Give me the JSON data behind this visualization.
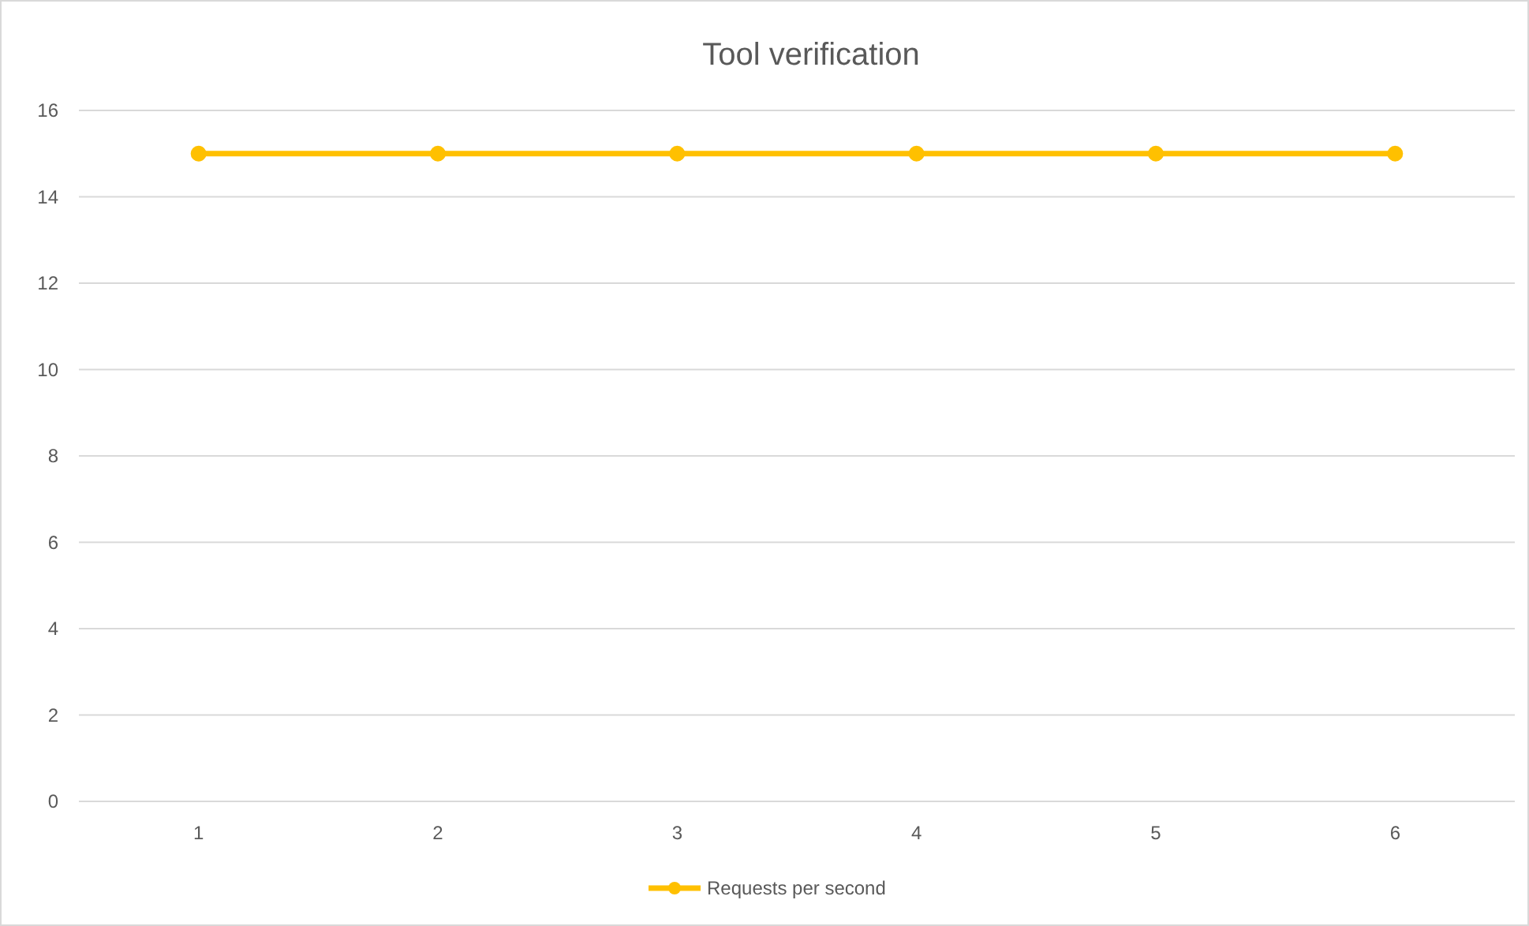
{
  "chart_data": {
    "type": "line",
    "title": "Tool verification",
    "categories": [
      "1",
      "2",
      "3",
      "4",
      "5",
      "6"
    ],
    "series": [
      {
        "name": "Requests per second",
        "color": "#ffc000",
        "values": [
          15,
          15,
          15,
          15,
          15,
          15
        ]
      }
    ],
    "ylim": [
      0,
      16
    ],
    "yticks": [
      0,
      2,
      4,
      6,
      8,
      10,
      12,
      14,
      16
    ],
    "grid": "y",
    "legend": "bottom",
    "marker": "circle",
    "line_style": "solid"
  }
}
